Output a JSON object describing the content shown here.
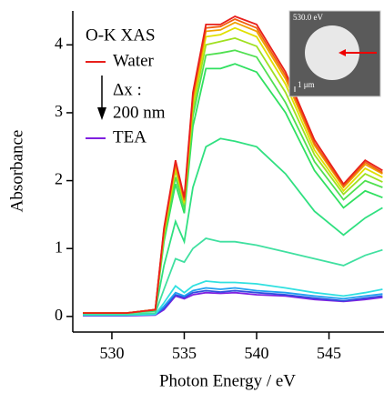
{
  "chart_data": {
    "type": "line",
    "x_label": "Photon Energy / eV",
    "y_label": "Absorbance",
    "annotations": [
      "O-K XAS",
      "Δx :",
      "200 nm"
    ],
    "inset_labels": [
      "530.0 eV",
      "1 μm"
    ],
    "x": [
      528,
      531,
      533,
      533.6,
      534.4,
      535.0,
      535.6,
      536.5,
      537.5,
      538.5,
      540,
      542,
      544,
      546,
      547.5,
      548.7
    ],
    "xlim": [
      527.3,
      548.8
    ],
    "xticks": [
      530,
      535,
      540,
      545
    ],
    "ylim": [
      -0.23,
      4.5
    ],
    "yticks": [
      0,
      1,
      2,
      3,
      4
    ],
    "series": [
      {
        "name": "Water",
        "color": "#e8201c",
        "values": [
          0.05,
          0.05,
          0.1,
          1.3,
          2.3,
          1.75,
          3.3,
          4.3,
          4.3,
          4.42,
          4.3,
          3.6,
          2.6,
          1.95,
          2.3,
          2.15
        ]
      },
      {
        "color": "#f06010",
        "values": [
          0.05,
          0.05,
          0.1,
          1.28,
          2.27,
          1.72,
          3.25,
          4.25,
          4.27,
          4.38,
          4.25,
          3.55,
          2.55,
          1.92,
          2.27,
          2.12
        ]
      },
      {
        "color": "#f0a000",
        "values": [
          0.05,
          0.05,
          0.1,
          1.26,
          2.24,
          1.7,
          3.2,
          4.2,
          4.22,
          4.33,
          4.2,
          3.5,
          2.52,
          1.9,
          2.24,
          2.1
        ]
      },
      {
        "color": "#e0e000",
        "values": [
          0.05,
          0.05,
          0.1,
          1.23,
          2.2,
          1.68,
          3.15,
          4.12,
          4.15,
          4.25,
          4.12,
          3.42,
          2.45,
          1.85,
          2.18,
          2.05
        ]
      },
      {
        "color": "#a0e020",
        "values": [
          0.05,
          0.05,
          0.1,
          1.2,
          2.15,
          1.65,
          3.05,
          4.0,
          4.05,
          4.1,
          3.98,
          3.3,
          2.38,
          1.8,
          2.1,
          1.98
        ]
      },
      {
        "color": "#50e050",
        "values": [
          0.05,
          0.05,
          0.1,
          1.15,
          2.05,
          1.6,
          2.95,
          3.85,
          3.88,
          3.92,
          3.82,
          3.15,
          2.28,
          1.72,
          2.0,
          1.9
        ]
      },
      {
        "color": "#30e060",
        "values": [
          0.05,
          0.05,
          0.1,
          1.1,
          1.95,
          1.52,
          2.8,
          3.65,
          3.65,
          3.72,
          3.6,
          3.0,
          2.15,
          1.6,
          1.85,
          1.75
        ]
      },
      {
        "color": "#30e080",
        "values": [
          0.05,
          0.05,
          0.08,
          0.75,
          1.4,
          1.1,
          1.9,
          2.5,
          2.62,
          2.58,
          2.5,
          2.1,
          1.55,
          1.2,
          1.45,
          1.6
        ]
      },
      {
        "color": "#40e0a0",
        "values": [
          0.03,
          0.03,
          0.05,
          0.4,
          0.85,
          0.8,
          1.0,
          1.15,
          1.1,
          1.1,
          1.05,
          0.95,
          0.85,
          0.75,
          0.9,
          0.98
        ]
      },
      {
        "color": "#30e0e0",
        "values": [
          0.02,
          0.02,
          0.03,
          0.2,
          0.45,
          0.35,
          0.45,
          0.52,
          0.5,
          0.5,
          0.48,
          0.42,
          0.35,
          0.3,
          0.35,
          0.4
        ]
      },
      {
        "color": "#20a0f0",
        "values": [
          0.02,
          0.02,
          0.03,
          0.15,
          0.35,
          0.3,
          0.38,
          0.42,
          0.4,
          0.42,
          0.38,
          0.35,
          0.3,
          0.26,
          0.3,
          0.33
        ]
      },
      {
        "color": "#3050e0",
        "values": [
          0.02,
          0.02,
          0.03,
          0.12,
          0.32,
          0.28,
          0.35,
          0.38,
          0.36,
          0.38,
          0.35,
          0.32,
          0.27,
          0.23,
          0.27,
          0.3
        ]
      },
      {
        "name": "TEA",
        "color": "#8020e0",
        "values": [
          0.01,
          0.01,
          0.02,
          0.1,
          0.3,
          0.26,
          0.32,
          0.35,
          0.34,
          0.35,
          0.32,
          0.3,
          0.25,
          0.22,
          0.25,
          0.28
        ]
      }
    ]
  }
}
